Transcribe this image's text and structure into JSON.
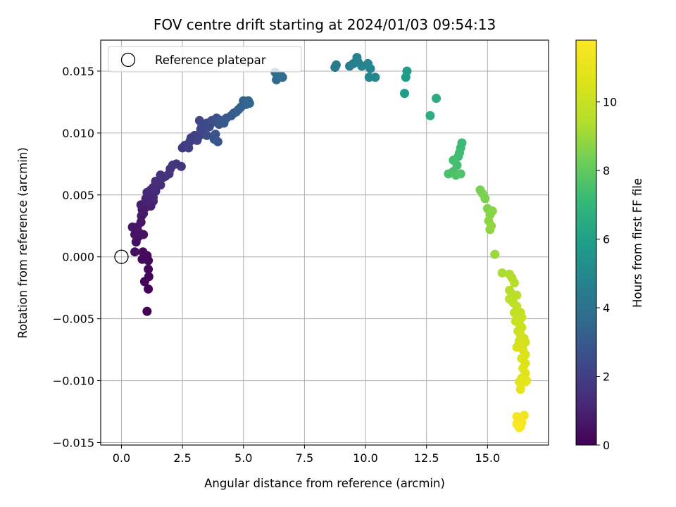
{
  "chart_data": {
    "type": "scatter",
    "title": "FOV centre drift starting at 2024/01/03 09:54:13",
    "xlabel": "Angular distance from reference (arcmin)",
    "ylabel": "Rotation from reference (arcmin)",
    "xlim": [
      -0.85,
      17.5
    ],
    "ylim": [
      -0.0152,
      0.0175
    ],
    "xticks": [
      0.0,
      2.5,
      5.0,
      7.5,
      10.0,
      12.5,
      15.0
    ],
    "xtick_labels": [
      "0.0",
      "2.5",
      "5.0",
      "7.5",
      "10.0",
      "12.5",
      "15.0"
    ],
    "yticks": [
      -0.015,
      -0.01,
      -0.005,
      0.0,
      0.005,
      0.01,
      0.015
    ],
    "ytick_labels": [
      "−0.015",
      "−0.010",
      "−0.005",
      "0.000",
      "0.005",
      "0.010",
      "0.015"
    ],
    "grid": true,
    "legend": {
      "position": "upper-left",
      "entries": [
        {
          "label": "Reference platepar",
          "marker": "open-circle"
        }
      ]
    },
    "reference_point": {
      "x": 0.0,
      "y": 0.0
    },
    "colorbar": {
      "label": "Hours from first FF file",
      "colormap": "viridis",
      "range": [
        0,
        11.8
      ],
      "ticks": [
        0,
        2,
        4,
        6,
        8,
        10
      ],
      "tick_labels": [
        "0",
        "2",
        "4",
        "6",
        "8",
        "10"
      ]
    },
    "points": [
      {
        "x": 1.05,
        "y": -0.0044,
        "h": 0.02
      },
      {
        "x": 1.1,
        "y": -0.0026,
        "h": 0.06
      },
      {
        "x": 0.95,
        "y": -0.002,
        "h": 0.1
      },
      {
        "x": 1.12,
        "y": -0.0016,
        "h": 0.14
      },
      {
        "x": 1.1,
        "y": -0.001,
        "h": 0.18
      },
      {
        "x": 1.1,
        "y": -0.0003,
        "h": 0.22
      },
      {
        "x": 0.85,
        "y": -0.0002,
        "h": 0.25
      },
      {
        "x": 1.05,
        "y": 0.0001,
        "h": 0.28
      },
      {
        "x": 0.88,
        "y": 0.0004,
        "h": 0.32
      },
      {
        "x": 0.55,
        "y": 0.0004,
        "h": 0.36
      },
      {
        "x": 0.6,
        "y": 0.0012,
        "h": 0.42
      },
      {
        "x": 0.68,
        "y": 0.0016,
        "h": 0.46
      },
      {
        "x": 0.75,
        "y": 0.0019,
        "h": 0.5
      },
      {
        "x": 0.9,
        "y": 0.0018,
        "h": 0.52
      },
      {
        "x": 0.55,
        "y": 0.0018,
        "h": 0.55
      },
      {
        "x": 0.45,
        "y": 0.0024,
        "h": 0.6
      },
      {
        "x": 0.65,
        "y": 0.0024,
        "h": 0.62
      },
      {
        "x": 0.8,
        "y": 0.0028,
        "h": 0.66
      },
      {
        "x": 0.82,
        "y": 0.0033,
        "h": 0.7
      },
      {
        "x": 0.9,
        "y": 0.0035,
        "h": 0.74
      },
      {
        "x": 0.85,
        "y": 0.0038,
        "h": 0.78
      },
      {
        "x": 1.0,
        "y": 0.004,
        "h": 0.82
      },
      {
        "x": 0.8,
        "y": 0.0042,
        "h": 0.86
      },
      {
        "x": 1.2,
        "y": 0.0041,
        "h": 0.9
      },
      {
        "x": 1.05,
        "y": 0.0044,
        "h": 0.94
      },
      {
        "x": 1.3,
        "y": 0.0045,
        "h": 0.98
      },
      {
        "x": 1.0,
        "y": 0.0047,
        "h": 1.02
      },
      {
        "x": 1.15,
        "y": 0.005,
        "h": 1.06
      },
      {
        "x": 1.3,
        "y": 0.0048,
        "h": 1.1
      },
      {
        "x": 1.05,
        "y": 0.0052,
        "h": 1.14
      },
      {
        "x": 1.2,
        "y": 0.0054,
        "h": 1.18
      },
      {
        "x": 1.4,
        "y": 0.0053,
        "h": 1.22
      },
      {
        "x": 1.3,
        "y": 0.0056,
        "h": 1.26
      },
      {
        "x": 1.45,
        "y": 0.0059,
        "h": 1.3
      },
      {
        "x": 1.6,
        "y": 0.0058,
        "h": 1.34
      },
      {
        "x": 1.4,
        "y": 0.0061,
        "h": 1.38
      },
      {
        "x": 1.55,
        "y": 0.0061,
        "h": 1.42
      },
      {
        "x": 1.7,
        "y": 0.0064,
        "h": 1.46
      },
      {
        "x": 1.6,
        "y": 0.0066,
        "h": 1.5
      },
      {
        "x": 1.8,
        "y": 0.0065,
        "h": 1.54
      },
      {
        "x": 1.95,
        "y": 0.0067,
        "h": 1.58
      },
      {
        "x": 2.0,
        "y": 0.0071,
        "h": 1.62
      },
      {
        "x": 2.1,
        "y": 0.0074,
        "h": 1.66
      },
      {
        "x": 2.25,
        "y": 0.0075,
        "h": 1.7
      },
      {
        "x": 2.45,
        "y": 0.0073,
        "h": 1.74
      },
      {
        "x": 2.5,
        "y": 0.0088,
        "h": 1.8
      },
      {
        "x": 2.6,
        "y": 0.009,
        "h": 1.85
      },
      {
        "x": 2.75,
        "y": 0.0088,
        "h": 1.9
      },
      {
        "x": 2.8,
        "y": 0.0093,
        "h": 1.95
      },
      {
        "x": 2.85,
        "y": 0.0096,
        "h": 2.0
      },
      {
        "x": 3.0,
        "y": 0.0098,
        "h": 2.05
      },
      {
        "x": 3.1,
        "y": 0.0094,
        "h": 2.1
      },
      {
        "x": 3.2,
        "y": 0.0098,
        "h": 2.15
      },
      {
        "x": 3.25,
        "y": 0.0103,
        "h": 2.2
      },
      {
        "x": 3.3,
        "y": 0.0106,
        "h": 2.25
      },
      {
        "x": 3.2,
        "y": 0.011,
        "h": 2.3
      },
      {
        "x": 3.4,
        "y": 0.0104,
        "h": 2.35
      },
      {
        "x": 3.5,
        "y": 0.0108,
        "h": 2.4
      },
      {
        "x": 3.6,
        "y": 0.0105,
        "h": 2.45
      },
      {
        "x": 3.5,
        "y": 0.0098,
        "h": 2.5
      },
      {
        "x": 3.7,
        "y": 0.011,
        "h": 2.55
      },
      {
        "x": 3.8,
        "y": 0.0109,
        "h": 2.6
      },
      {
        "x": 3.9,
        "y": 0.0112,
        "h": 2.65
      },
      {
        "x": 3.8,
        "y": 0.0095,
        "h": 2.7
      },
      {
        "x": 3.85,
        "y": 0.0099,
        "h": 2.75
      },
      {
        "x": 3.95,
        "y": 0.0093,
        "h": 2.8
      },
      {
        "x": 4.0,
        "y": 0.0107,
        "h": 2.85
      },
      {
        "x": 4.1,
        "y": 0.011,
        "h": 2.9
      },
      {
        "x": 4.2,
        "y": 0.0108,
        "h": 2.95
      },
      {
        "x": 4.3,
        "y": 0.0112,
        "h": 3.0
      },
      {
        "x": 4.5,
        "y": 0.0114,
        "h": 3.05
      },
      {
        "x": 4.6,
        "y": 0.0116,
        "h": 3.1
      },
      {
        "x": 4.7,
        "y": 0.0117,
        "h": 3.15
      },
      {
        "x": 4.8,
        "y": 0.0119,
        "h": 3.2
      },
      {
        "x": 4.9,
        "y": 0.0121,
        "h": 3.25
      },
      {
        "x": 5.0,
        "y": 0.0126,
        "h": 3.3
      },
      {
        "x": 5.1,
        "y": 0.0123,
        "h": 3.35
      },
      {
        "x": 5.2,
        "y": 0.0126,
        "h": 3.4
      },
      {
        "x": 5.25,
        "y": 0.0124,
        "h": 3.45
      },
      {
        "x": 6.3,
        "y": 0.0149,
        "h": 3.6
      },
      {
        "x": 6.4,
        "y": 0.0147,
        "h": 3.65
      },
      {
        "x": 6.35,
        "y": 0.0143,
        "h": 3.7
      },
      {
        "x": 6.55,
        "y": 0.0146,
        "h": 3.75
      },
      {
        "x": 6.6,
        "y": 0.0145,
        "h": 3.8
      },
      {
        "x": 8.75,
        "y": 0.0153,
        "h": 4.4
      },
      {
        "x": 8.8,
        "y": 0.0155,
        "h": 4.45
      },
      {
        "x": 9.35,
        "y": 0.0154,
        "h": 4.55
      },
      {
        "x": 9.5,
        "y": 0.0156,
        "h": 4.6
      },
      {
        "x": 9.65,
        "y": 0.0161,
        "h": 4.65
      },
      {
        "x": 9.7,
        "y": 0.0157,
        "h": 4.7
      },
      {
        "x": 9.85,
        "y": 0.0154,
        "h": 4.75
      },
      {
        "x": 10.1,
        "y": 0.0156,
        "h": 4.8
      },
      {
        "x": 10.2,
        "y": 0.0152,
        "h": 4.85
      },
      {
        "x": 10.15,
        "y": 0.0145,
        "h": 4.9
      },
      {
        "x": 10.4,
        "y": 0.0145,
        "h": 4.95
      },
      {
        "x": 11.7,
        "y": 0.015,
        "h": 5.8
      },
      {
        "x": 11.65,
        "y": 0.0145,
        "h": 5.85
      },
      {
        "x": 11.6,
        "y": 0.0132,
        "h": 5.9
      },
      {
        "x": 12.9,
        "y": 0.0128,
        "h": 6.5
      },
      {
        "x": 12.65,
        "y": 0.0114,
        "h": 6.6
      },
      {
        "x": 13.95,
        "y": 0.0092,
        "h": 7.2
      },
      {
        "x": 13.9,
        "y": 0.0088,
        "h": 7.25
      },
      {
        "x": 13.85,
        "y": 0.0084,
        "h": 7.3
      },
      {
        "x": 13.8,
        "y": 0.0081,
        "h": 7.35
      },
      {
        "x": 13.6,
        "y": 0.0078,
        "h": 7.4
      },
      {
        "x": 13.75,
        "y": 0.0074,
        "h": 7.45
      },
      {
        "x": 13.6,
        "y": 0.0069,
        "h": 7.5
      },
      {
        "x": 13.4,
        "y": 0.0067,
        "h": 7.55
      },
      {
        "x": 13.7,
        "y": 0.0066,
        "h": 7.6
      },
      {
        "x": 13.9,
        "y": 0.0067,
        "h": 7.65
      },
      {
        "x": 14.7,
        "y": 0.0054,
        "h": 8.4
      },
      {
        "x": 14.8,
        "y": 0.0051,
        "h": 8.45
      },
      {
        "x": 14.9,
        "y": 0.0047,
        "h": 8.5
      },
      {
        "x": 15.0,
        "y": 0.0039,
        "h": 8.6
      },
      {
        "x": 15.2,
        "y": 0.0037,
        "h": 8.65
      },
      {
        "x": 15.1,
        "y": 0.0034,
        "h": 8.7
      },
      {
        "x": 15.05,
        "y": 0.0029,
        "h": 8.75
      },
      {
        "x": 15.15,
        "y": 0.0025,
        "h": 8.8
      },
      {
        "x": 15.1,
        "y": 0.0022,
        "h": 8.85
      },
      {
        "x": 15.3,
        "y": 0.0002,
        "h": 9.0
      },
      {
        "x": 15.6,
        "y": -0.0013,
        "h": 9.3
      },
      {
        "x": 15.9,
        "y": -0.0014,
        "h": 9.35
      },
      {
        "x": 16.0,
        "y": -0.0017,
        "h": 9.4
      },
      {
        "x": 16.1,
        "y": -0.0021,
        "h": 9.45
      },
      {
        "x": 15.9,
        "y": -0.0027,
        "h": 9.5
      },
      {
        "x": 16.0,
        "y": -0.003,
        "h": 9.55
      },
      {
        "x": 16.2,
        "y": -0.0031,
        "h": 9.6
      },
      {
        "x": 15.9,
        "y": -0.0034,
        "h": 9.65
      },
      {
        "x": 16.05,
        "y": -0.0037,
        "h": 9.7
      },
      {
        "x": 16.2,
        "y": -0.004,
        "h": 9.75
      },
      {
        "x": 16.35,
        "y": -0.0045,
        "h": 9.8
      },
      {
        "x": 16.1,
        "y": -0.0045,
        "h": 9.85
      },
      {
        "x": 16.2,
        "y": -0.0048,
        "h": 9.9
      },
      {
        "x": 16.4,
        "y": -0.0049,
        "h": 9.95
      },
      {
        "x": 16.15,
        "y": -0.0052,
        "h": 10.0
      },
      {
        "x": 16.3,
        "y": -0.0054,
        "h": 10.05
      },
      {
        "x": 16.4,
        "y": -0.0057,
        "h": 10.1
      },
      {
        "x": 16.25,
        "y": -0.006,
        "h": 10.15
      },
      {
        "x": 16.35,
        "y": -0.0063,
        "h": 10.2
      },
      {
        "x": 16.5,
        "y": -0.0066,
        "h": 10.25
      },
      {
        "x": 16.3,
        "y": -0.0068,
        "h": 10.3
      },
      {
        "x": 16.55,
        "y": -0.0069,
        "h": 10.35
      },
      {
        "x": 16.4,
        "y": -0.0072,
        "h": 10.4
      },
      {
        "x": 16.2,
        "y": -0.0073,
        "h": 10.45
      },
      {
        "x": 16.45,
        "y": -0.0075,
        "h": 10.5
      },
      {
        "x": 16.55,
        "y": -0.0079,
        "h": 10.55
      },
      {
        "x": 16.4,
        "y": -0.0082,
        "h": 10.6
      },
      {
        "x": 16.55,
        "y": -0.0086,
        "h": 10.65
      },
      {
        "x": 16.45,
        "y": -0.009,
        "h": 10.7
      },
      {
        "x": 16.55,
        "y": -0.0094,
        "h": 10.75
      },
      {
        "x": 16.4,
        "y": -0.0098,
        "h": 10.8
      },
      {
        "x": 16.3,
        "y": -0.0101,
        "h": 10.85
      },
      {
        "x": 16.55,
        "y": -0.0101,
        "h": 10.9
      },
      {
        "x": 16.6,
        "y": -0.01,
        "h": 10.95
      },
      {
        "x": 16.35,
        "y": -0.0107,
        "h": 11.0
      },
      {
        "x": 16.5,
        "y": -0.0128,
        "h": 11.4
      },
      {
        "x": 16.2,
        "y": -0.0129,
        "h": 11.45
      },
      {
        "x": 16.3,
        "y": -0.0131,
        "h": 11.5
      },
      {
        "x": 16.4,
        "y": -0.0134,
        "h": 11.55
      },
      {
        "x": 16.2,
        "y": -0.0135,
        "h": 11.6
      },
      {
        "x": 16.35,
        "y": -0.0137,
        "h": 11.65
      },
      {
        "x": 16.3,
        "y": -0.0138,
        "h": 11.7
      }
    ]
  }
}
